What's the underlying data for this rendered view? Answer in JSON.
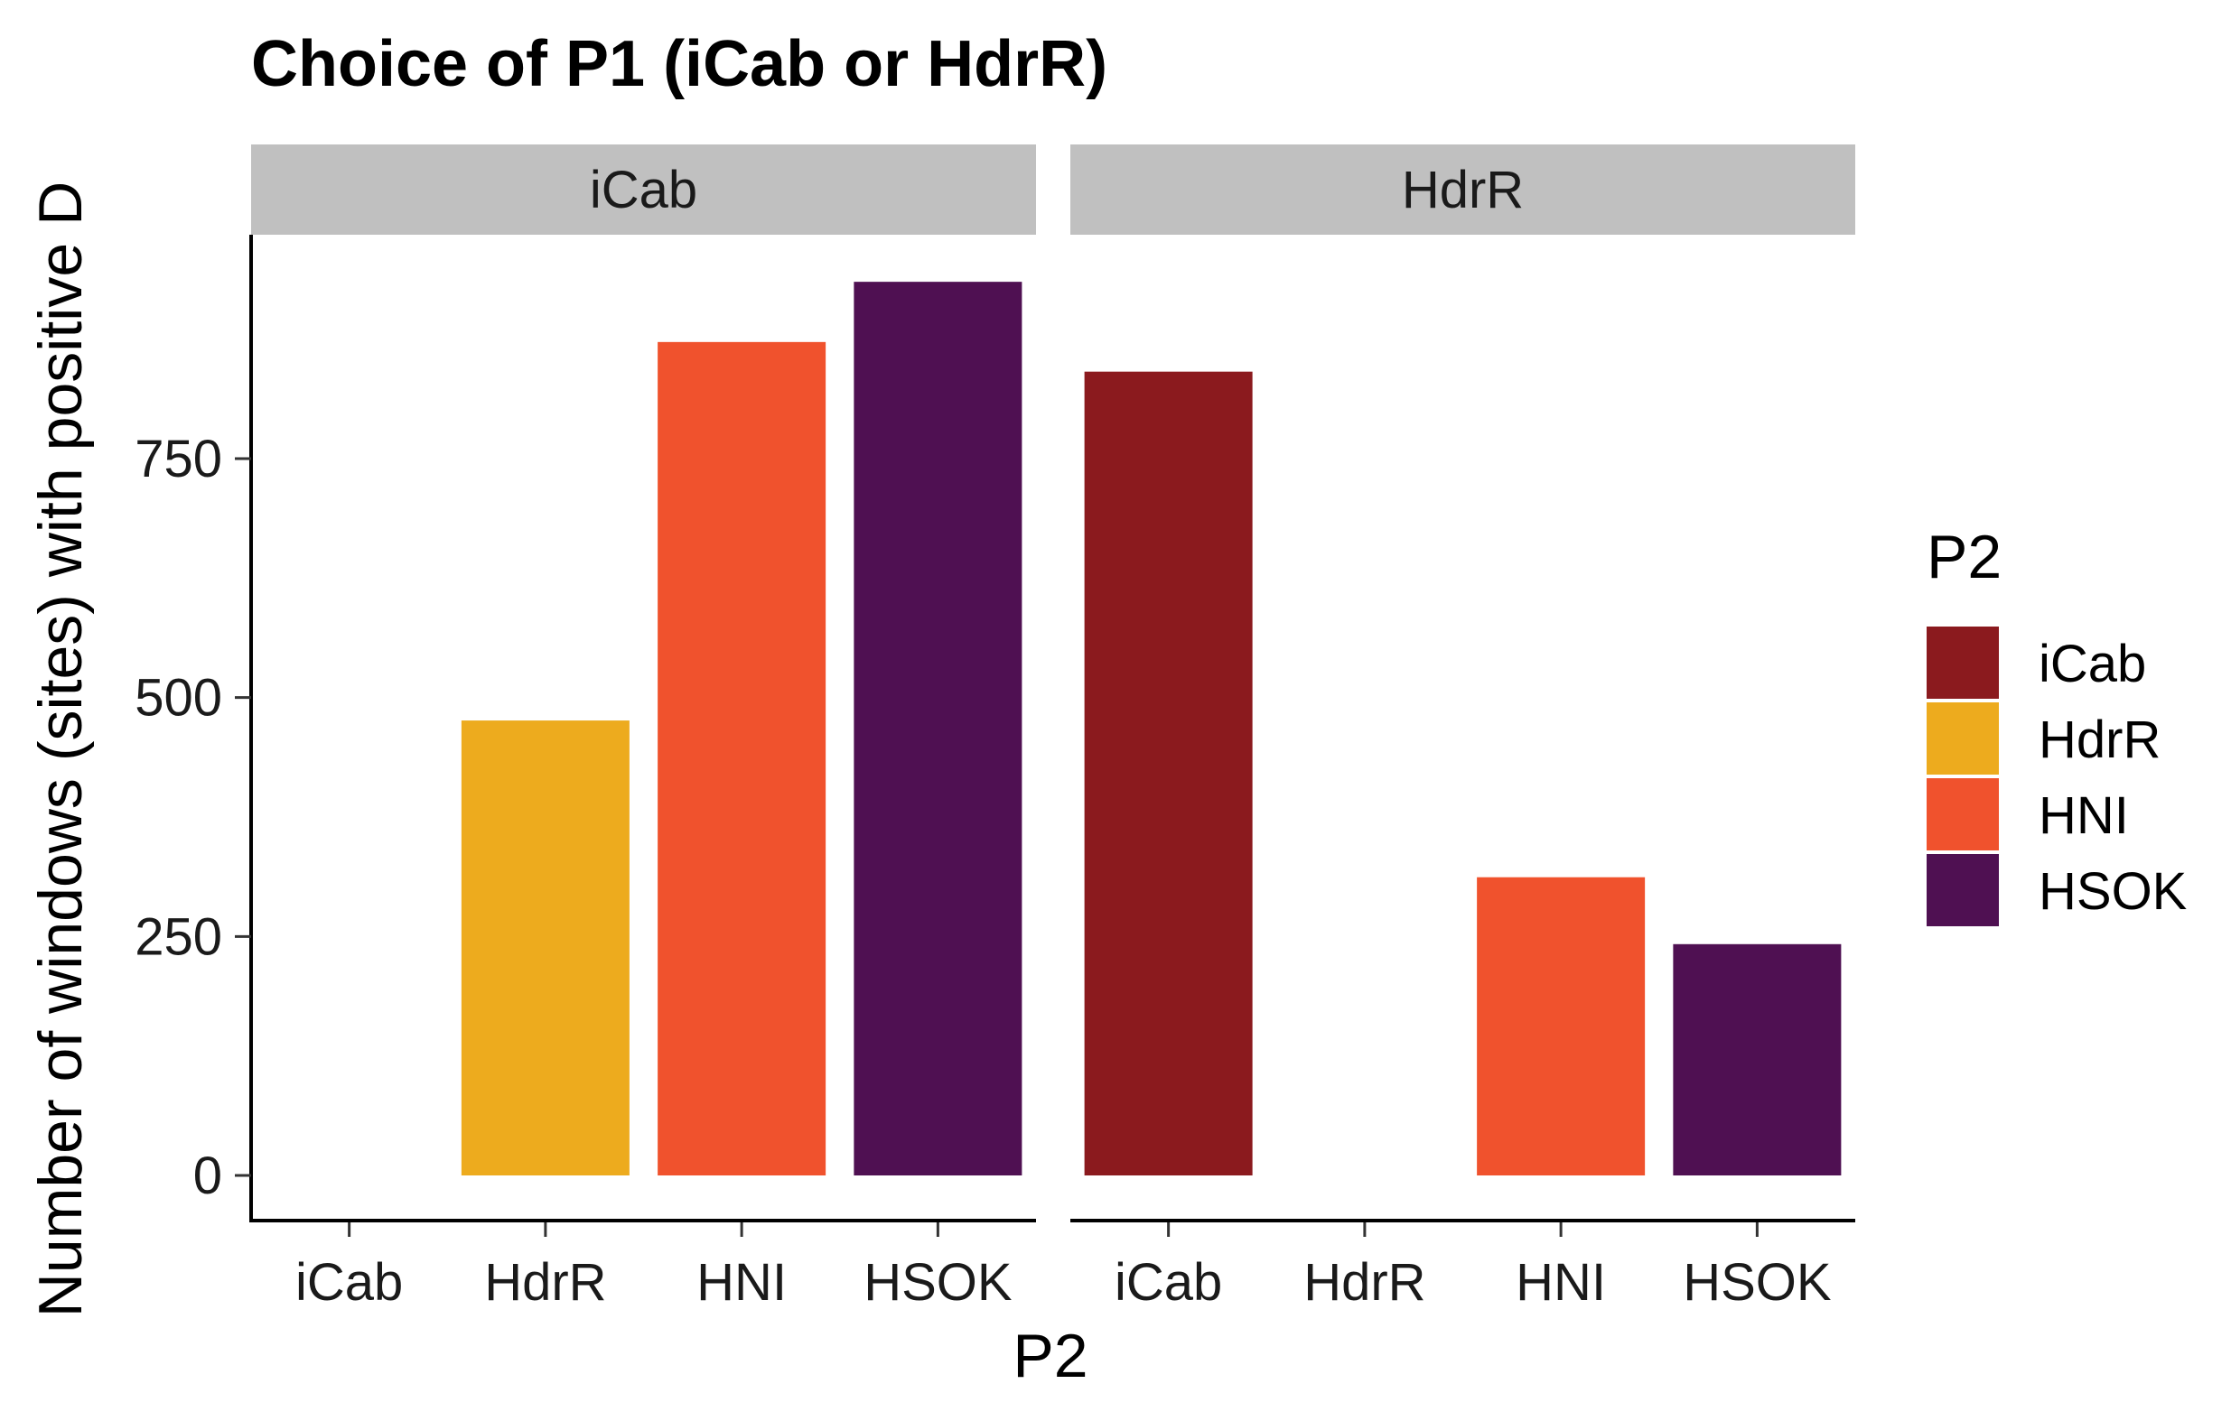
{
  "chart_data": {
    "type": "bar",
    "title": "Choice of P1 (iCab or HdrR)",
    "xlabel": "P2",
    "ylabel": "Number of windows (sites) with positive D",
    "ylim": [
      0,
      980
    ],
    "yticks": [
      0,
      250,
      500,
      750
    ],
    "categories": [
      "iCab",
      "HdrR",
      "HNI",
      "HSOK"
    ],
    "colors": {
      "iCab": "#8b1a1e",
      "HdrR": "#edab1e",
      "HNI": "#f0522d",
      "HSOK": "#4f1052"
    },
    "facets": [
      {
        "label": "iCab",
        "values": [
          null,
          476,
          872,
          935
        ]
      },
      {
        "label": "HdrR",
        "values": [
          841,
          null,
          312,
          242
        ]
      }
    ],
    "legend": {
      "title": "P2",
      "position": "right",
      "entries": [
        "iCab",
        "HdrR",
        "HNI",
        "HSOK"
      ]
    },
    "strip_color": "#c0c0c0",
    "grid": false
  }
}
